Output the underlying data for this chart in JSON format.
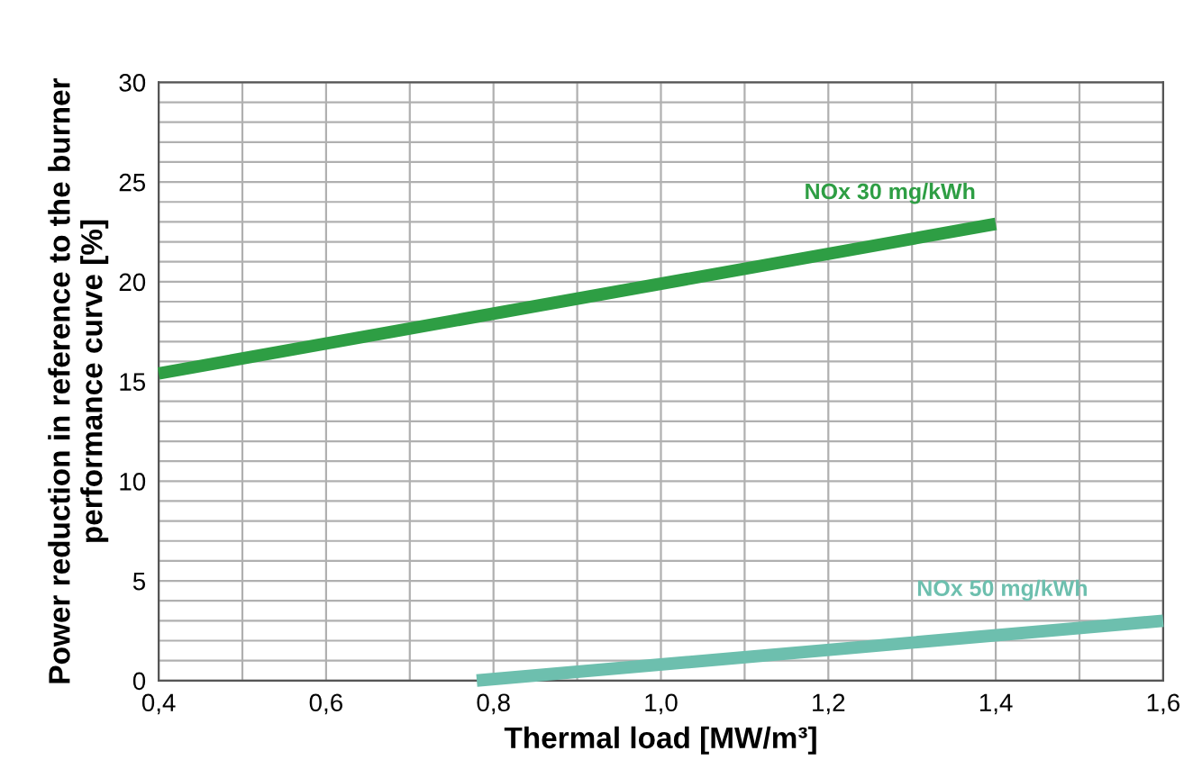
{
  "chart_data": {
    "type": "line",
    "xlabel": "Thermal load [MW/m³]",
    "ylabel": "Power reduction in reference to the burner\nperformance curve [%]",
    "series": [
      {
        "name": "NOx 30 mg/kWh",
        "color": "#2e9e44",
        "x": [
          0.4,
          1.4
        ],
        "values": [
          15.4,
          22.9
        ]
      },
      {
        "name": "NOx 50 mg/kWh",
        "color": "#6dbfae",
        "x": [
          0.78,
          1.6
        ],
        "values": [
          0,
          3.0
        ]
      }
    ],
    "xlim": [
      0.4,
      1.6
    ],
    "xticks": [
      {
        "value": 0.4,
        "label": "0,4"
      },
      {
        "value": 0.5,
        "label": null
      },
      {
        "value": 0.6,
        "label": "0,6"
      },
      {
        "value": 0.7,
        "label": null
      },
      {
        "value": 0.8,
        "label": "0,8"
      },
      {
        "value": 0.9,
        "label": null
      },
      {
        "value": 1.0,
        "label": "1,0"
      },
      {
        "value": 1.1,
        "label": null
      },
      {
        "value": 1.2,
        "label": "1,2"
      },
      {
        "value": 1.3,
        "label": null
      },
      {
        "value": 1.4,
        "label": "1,4"
      },
      {
        "value": 1.5,
        "label": null
      },
      {
        "value": 1.6,
        "label": "1,6"
      }
    ],
    "ylim": [
      0,
      30
    ],
    "yticks": [
      0,
      {
        "value": 1,
        "label": null
      },
      {
        "value": 2,
        "label": null
      },
      {
        "value": 3,
        "label": null
      },
      {
        "value": 4,
        "label": null
      },
      5,
      {
        "value": 6,
        "label": null
      },
      {
        "value": 7,
        "label": null
      },
      {
        "value": 8,
        "label": null
      },
      {
        "value": 9,
        "label": null
      },
      10,
      {
        "value": 11,
        "label": null
      },
      {
        "value": 12,
        "label": null
      },
      {
        "value": 13,
        "label": null
      },
      {
        "value": 14,
        "label": null
      },
      15,
      {
        "value": 16,
        "label": null
      },
      {
        "value": 17,
        "label": null
      },
      {
        "value": 18,
        "label": null
      },
      {
        "value": 19,
        "label": null
      },
      20,
      {
        "value": 21,
        "label": null
      },
      {
        "value": 22,
        "label": null
      },
      {
        "value": 23,
        "label": null
      },
      {
        "value": 24,
        "label": null
      },
      25,
      {
        "value": 26,
        "label": null
      },
      {
        "value": 27,
        "label": null
      },
      {
        "value": 28,
        "label": null
      },
      {
        "value": 29,
        "label": null
      },
      30
    ],
    "grid": true,
    "line_style": "solid"
  }
}
